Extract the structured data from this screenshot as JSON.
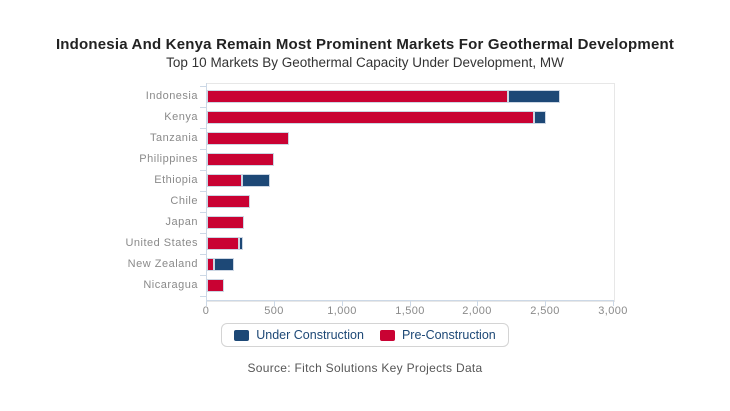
{
  "colors": {
    "under_construction": "#1d4876",
    "pre_construction": "#c90233",
    "axis": "#ccd8e6",
    "plot_border": "#e7e7e7",
    "label_gray": "#8a8a8a",
    "legend_text": "#1d4876",
    "source_text": "#565656",
    "title_text": "#222222"
  },
  "source": "Source: Fitch Solutions Key Projects Data",
  "chart_data": {
    "type": "bar",
    "orientation": "horizontal",
    "stacked": true,
    "title": "Indonesia And Kenya Remain Most Prominent Markets For Geothermal Development",
    "subtitle": "Top 10 Markets By Geothermal Capacity Under Development, MW",
    "xlabel": "",
    "ylabel": "",
    "xlim": [
      0,
      3000
    ],
    "grid": false,
    "legend_position": "bottom",
    "categories": [
      "Indonesia",
      "Kenya",
      "Tanzania",
      "Philippines",
      "Ethiopia",
      "Chile",
      "Japan",
      "United States",
      "New Zealand",
      "Nicaragua"
    ],
    "series": [
      {
        "name": "Under Construction",
        "color": "#1d4876",
        "values": [
          380,
          90,
          0,
          0,
          205,
          0,
          0,
          30,
          150,
          0
        ]
      },
      {
        "name": "Pre-Construction",
        "color": "#c90233",
        "values": [
          2220,
          2410,
          605,
          495,
          260,
          320,
          275,
          235,
          50,
          125
        ]
      }
    ],
    "stack_order": [
      "Pre-Construction",
      "Under Construction"
    ],
    "xticks": [
      0,
      500,
      1000,
      1500,
      2000,
      2500,
      3000
    ],
    "xtick_labels": [
      "0",
      "500",
      "1,000",
      "1,500",
      "2,000",
      "2,500",
      "3,000"
    ]
  }
}
